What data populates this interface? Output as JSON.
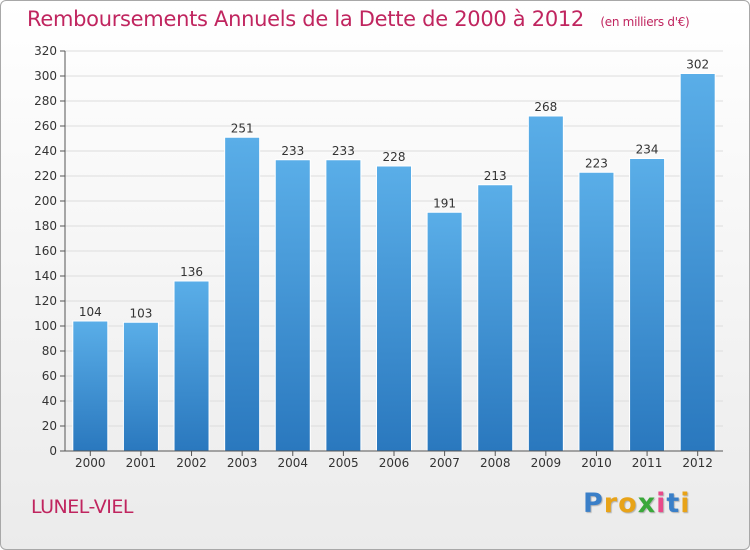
{
  "chart_data": {
    "type": "bar",
    "title": "Remboursements Annuels de la Dette de 2000 à 2012",
    "subtitle": "(en milliers d'€)",
    "categories": [
      "2000",
      "2001",
      "2002",
      "2003",
      "2004",
      "2005",
      "2006",
      "2007",
      "2008",
      "2009",
      "2010",
      "2011",
      "2012"
    ],
    "values": [
      104,
      103,
      136,
      251,
      233,
      233,
      228,
      191,
      213,
      268,
      223,
      234,
      302
    ],
    "ylim": [
      0,
      320
    ],
    "yticks": [
      0,
      20,
      40,
      60,
      80,
      100,
      120,
      140,
      160,
      180,
      200,
      220,
      240,
      260,
      280,
      300,
      320
    ],
    "grid": true,
    "bar_color": "#3a8fd3"
  },
  "footer": {
    "commune": "LUNEL-VIEL",
    "brand": {
      "letters": [
        "P",
        "r",
        "o",
        "x",
        "i",
        "t",
        "i"
      ],
      "colors": [
        "#3a7fc8",
        "#e8a318",
        "#e8a318",
        "#3aa83a",
        "#e84a8a",
        "#3a7fc8",
        "#e8a318"
      ]
    }
  }
}
